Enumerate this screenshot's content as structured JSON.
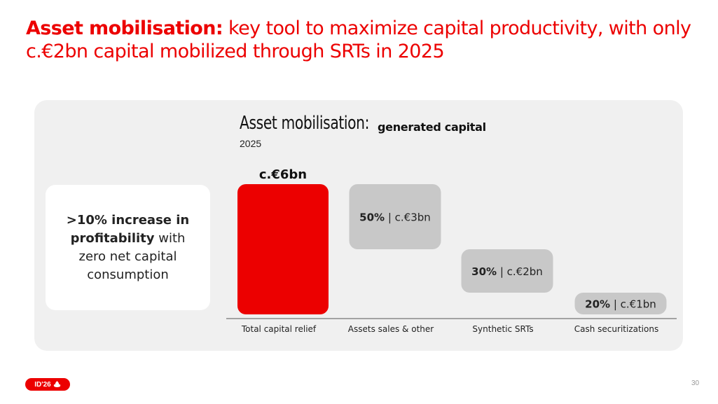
{
  "headline": {
    "bold": "Asset mobilisation:",
    "rest": " key tool to maximize capital productivity, with only c.€2bn capital mobilized through SRTs in 2025"
  },
  "callout": {
    "bold": ">10% increase in profitability",
    "rest": " with zero net capital consumption"
  },
  "chart_data": {
    "type": "bar",
    "title": "Asset mobilisation:",
    "subtitle": "generated capital",
    "period": "2025",
    "categories": [
      "Total capital relief",
      "Assets sales & other",
      "Synthetic SRTs",
      "Cash securitizations"
    ],
    "unit": "€bn",
    "bars": [
      {
        "category": "Total capital relief",
        "start": 0,
        "end": 6,
        "share": null,
        "label": "c.€6bn",
        "color": "#ec0000"
      },
      {
        "category": "Assets sales & other",
        "start": 3,
        "end": 6,
        "share": "50%",
        "label": "c.€3bn",
        "color": "#c8c8c8"
      },
      {
        "category": "Synthetic SRTs",
        "start": 1,
        "end": 3,
        "share": "30%",
        "label": "c.€2bn",
        "color": "#c8c8c8"
      },
      {
        "category": "Cash securitizations",
        "start": 0,
        "end": 1,
        "share": "20%",
        "label": "c.€1bn",
        "color": "#c8c8c8"
      }
    ],
    "ylim": [
      0,
      6
    ],
    "colors": {
      "accent": "#ec0000",
      "neutral": "#c8c8c8"
    }
  },
  "footer": {
    "badge": "ID'26",
    "page": "30"
  }
}
